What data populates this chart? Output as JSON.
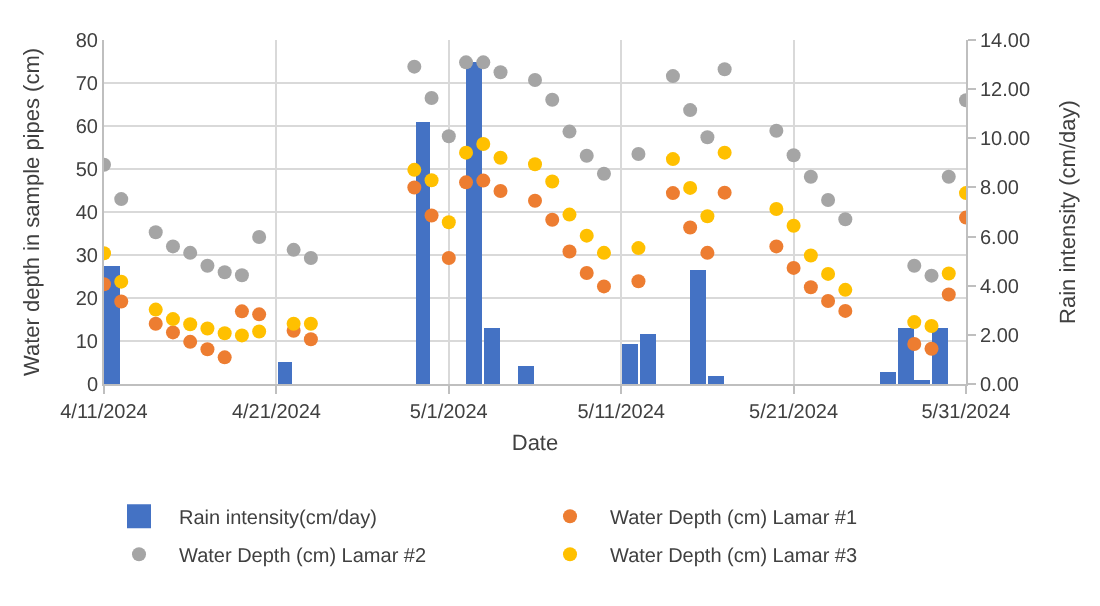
{
  "chart_data": {
    "type": "scatter",
    "xlabel": "Date",
    "ylabel": "Water depth in sample pipes (cm)",
    "y2label": "Rain intensity (cm/day)",
    "x": [
      "2024-04-11",
      "2024-04-12",
      "2024-04-14",
      "2024-04-15",
      "2024-04-16",
      "2024-04-17",
      "2024-04-18",
      "2024-04-19",
      "2024-04-20",
      "2024-04-22",
      "2024-04-23",
      "2024-04-29",
      "2024-04-30",
      "2024-05-01",
      "2024-05-02",
      "2024-05-03",
      "2024-05-04",
      "2024-05-06",
      "2024-05-07",
      "2024-05-08",
      "2024-05-09",
      "2024-05-10",
      "2024-05-12",
      "2024-05-14",
      "2024-05-15",
      "2024-05-16",
      "2024-05-17",
      "2024-05-20",
      "2024-05-21",
      "2024-05-22",
      "2024-05-23",
      "2024-05-24",
      "2024-05-28",
      "2024-05-29",
      "2024-05-30",
      "2024-05-31"
    ],
    "series": [
      {
        "name": "Rain intensity(cm/day)",
        "type": "bar",
        "axis": "y2",
        "color": "#4472c4",
        "x": [
          "2024-04-11T12:00",
          "2024-04-21T12:00",
          "2024-04-29T12:00",
          "2024-05-02T12:00",
          "2024-05-03T12:00",
          "2024-05-05T12:00",
          "2024-05-11T12:00",
          "2024-05-12T12:00",
          "2024-05-15T12:00",
          "2024-05-16T12:00",
          "2024-05-26T12:00",
          "2024-05-27T12:00",
          "2024-05-28T12:00",
          "2024-05-29T12:00"
        ],
        "values": [
          4.8,
          0.9,
          10.7,
          13.1,
          2.3,
          0.7,
          1.6,
          2.0,
          4.6,
          0.3,
          0.5,
          2.3,
          0.2,
          2.3
        ]
      },
      {
        "name": "Water Depth (cm) Lamar #1",
        "color": "#ed7d31",
        "values": [
          23.2,
          19.2,
          14,
          12,
          9.8,
          8.1,
          6.2,
          16.9,
          16.2,
          12.4,
          10.4,
          45.7,
          39.2,
          29.3,
          46.9,
          47.3,
          44.9,
          42.6,
          38.2,
          30.8,
          25.8,
          22.7,
          23.9,
          44.4,
          36.4,
          30.5,
          44.5,
          32,
          27,
          22.5,
          19.3,
          17,
          9.3,
          8.2,
          20.8,
          38.7
        ]
      },
      {
        "name": "Water Depth (cm) Lamar #2",
        "color": "#a5a5a5",
        "values": [
          51,
          43,
          35.3,
          32,
          30.5,
          27.5,
          26,
          25.3,
          34.2,
          31.2,
          29.3,
          73.8,
          66.5,
          57.6,
          74.8,
          74.8,
          72.5,
          70.7,
          66.1,
          58.7,
          53.1,
          48.9,
          53.5,
          71.6,
          63.7,
          57.4,
          73.2,
          58.9,
          53.2,
          48.2,
          42.8,
          38.3,
          27.5,
          25.2,
          48.2,
          66
        ]
      },
      {
        "name": "Water Depth (cm) Lamar #3",
        "color": "#ffc000",
        "values": [
          30.4,
          23.8,
          17.3,
          15.1,
          13.9,
          12.9,
          11.8,
          11.3,
          12.2,
          14,
          14,
          49.8,
          47.4,
          37.6,
          53.8,
          55.8,
          52.6,
          51.1,
          47.1,
          39.4,
          34.5,
          30.5,
          31.6,
          52.3,
          45.6,
          39,
          53.8,
          40.7,
          36.8,
          29.9,
          25.6,
          21.9,
          14.4,
          13.5,
          25.7,
          44.4
        ]
      }
    ],
    "xlim": [
      "2024-04-11",
      "2024-05-31"
    ],
    "xticks": [
      {
        "value": "2024-04-11",
        "label": "4/11/2024"
      },
      {
        "value": "2024-04-21",
        "label": "4/21/2024"
      },
      {
        "value": "2024-05-01",
        "label": "5/1/2024"
      },
      {
        "value": "2024-05-11",
        "label": "5/11/2024"
      },
      {
        "value": "2024-05-21",
        "label": "5/21/2024"
      },
      {
        "value": "2024-05-31",
        "label": "5/31/2024"
      }
    ],
    "ylim": [
      0,
      80
    ],
    "yticks": [
      0,
      10,
      20,
      30,
      40,
      50,
      60,
      70,
      80
    ],
    "y2lim": [
      0,
      14
    ],
    "y2ticks": [
      {
        "value": 0,
        "label": "0.00"
      },
      {
        "value": 2,
        "label": "2.00"
      },
      {
        "value": 4,
        "label": "4.00"
      },
      {
        "value": 6,
        "label": "6.00"
      },
      {
        "value": 8,
        "label": "8.00"
      },
      {
        "value": 10,
        "label": "10.00"
      },
      {
        "value": 12,
        "label": "12.00"
      },
      {
        "value": 14,
        "label": "14.00"
      }
    ],
    "marker": "circle",
    "grid": true,
    "legend": "bottom"
  }
}
